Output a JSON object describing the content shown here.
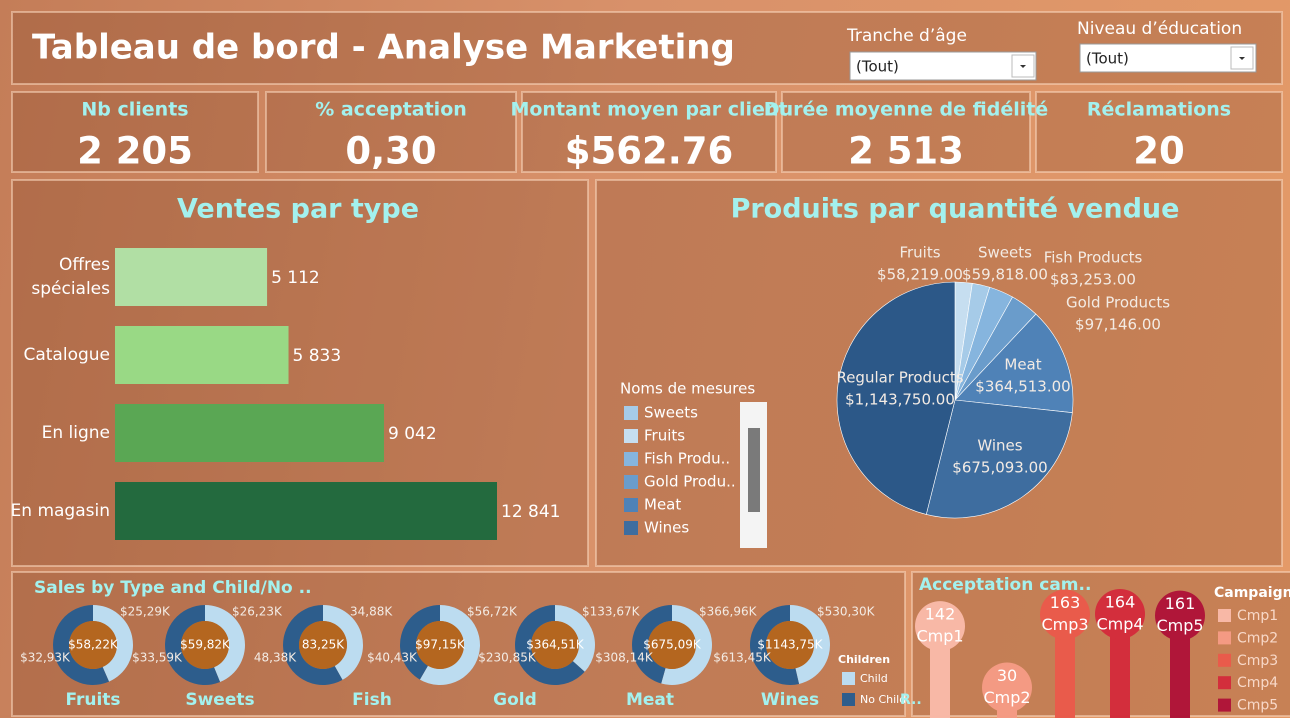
{
  "header": {
    "title": "Tableau de bord - Analyse Marketing"
  },
  "filters": [
    {
      "label": "Tranche d’âge",
      "value": "(Tout)"
    },
    {
      "label": "Niveau d’éducation",
      "value": "(Tout)"
    }
  ],
  "kpis": [
    {
      "label": "Nb clients",
      "value": "2 205"
    },
    {
      "label": "% acceptation",
      "value": "0,30"
    },
    {
      "label": "Montant moyen par client",
      "value": "$562.76"
    },
    {
      "label": "Durée moyenne de fidélité",
      "value": "2 513"
    },
    {
      "label": "Réclamations",
      "value": "20"
    }
  ],
  "chart_data": [
    {
      "type": "bar",
      "orientation": "horizontal",
      "title": "Ventes par type",
      "categories": [
        "Offres spéciales",
        "Catalogue",
        "En ligne",
        "En magasin"
      ],
      "values": [
        5112,
        5833,
        9042,
        12841
      ],
      "value_labels": [
        "5 112",
        "5 833",
        "9 042",
        "12 841"
      ],
      "colors": [
        "#b1dfa4",
        "#99d985",
        "#5aa754",
        "#236a3e"
      ]
    },
    {
      "type": "pie",
      "title": "Produits par quantité vendue",
      "categories": [
        "Fruits",
        "Sweets",
        "Fish Products",
        "Gold Products",
        "Meat",
        "Wines",
        "Regular Products"
      ],
      "values": [
        58219,
        59818,
        83253,
        97146,
        364513,
        675093,
        1143750
      ],
      "value_labels": [
        "$58,219.00",
        "$59,818.00",
        "$83,253.00",
        "$97,146.00",
        "$364,513.00",
        "$675,093.00",
        "$1,143,750.00"
      ],
      "colors": [
        "#c6def0",
        "#a6cbe8",
        "#86b5de",
        "#6a9ccb",
        "#4f82b7",
        "#3e6d9f",
        "#2c5888"
      ],
      "legend": {
        "title": "Noms de mesures",
        "labels": [
          "Sweets",
          "Fruits",
          "Fish Produ..",
          "Gold Produ..",
          "Meat",
          "Wines"
        ]
      }
    },
    {
      "type": "donut",
      "title": "Sales by Type and Child/No ..",
      "categories": [
        "Fruits",
        "Sweets",
        "Fish",
        "Gold",
        "Meat",
        "Wines",
        null
      ],
      "totals": [
        58220,
        59820,
        83250,
        97150,
        364510,
        675090,
        1143750
      ],
      "total_labels": [
        "$58,22K",
        "$59,82K",
        "83,25K",
        "$97,15K",
        "$364,51K",
        "$675,09K",
        "$1143,75K"
      ],
      "series": [
        {
          "name": "Child",
          "color": "#bcdcf0",
          "values": [
            25290,
            26230,
            34880,
            56720,
            133670,
            366960,
            530300
          ],
          "value_labels": [
            "$25,29K",
            "$26,23K",
            "34,88K",
            "$56,72K",
            "$133,67K",
            "$366,96K",
            "$530,30K"
          ]
        },
        {
          "name": "No Child",
          "color": "#2d5d8c",
          "values": [
            32930,
            33590,
            48380,
            40430,
            230850,
            308140,
            613450
          ],
          "value_labels": [
            "$32,93K",
            "$33,59K",
            "48,38K",
            "$40,43K",
            "$230,85K",
            "$308,14K",
            "$613,45K"
          ]
        }
      ],
      "legend": {
        "title": "Children"
      },
      "annotations": [
        "R.."
      ]
    },
    {
      "type": "lollipop",
      "title": "Acceptation cam..",
      "categories": [
        "Cmp1",
        "Cmp2",
        "Cmp3",
        "Cmp4",
        "Cmp5"
      ],
      "values": [
        142,
        30,
        163,
        164,
        161
      ],
      "colors": [
        "#f8b8a6",
        "#f49a83",
        "#e95b4b",
        "#d32e3c",
        "#b01639"
      ],
      "legend": {
        "title": "Campaign"
      }
    }
  ]
}
